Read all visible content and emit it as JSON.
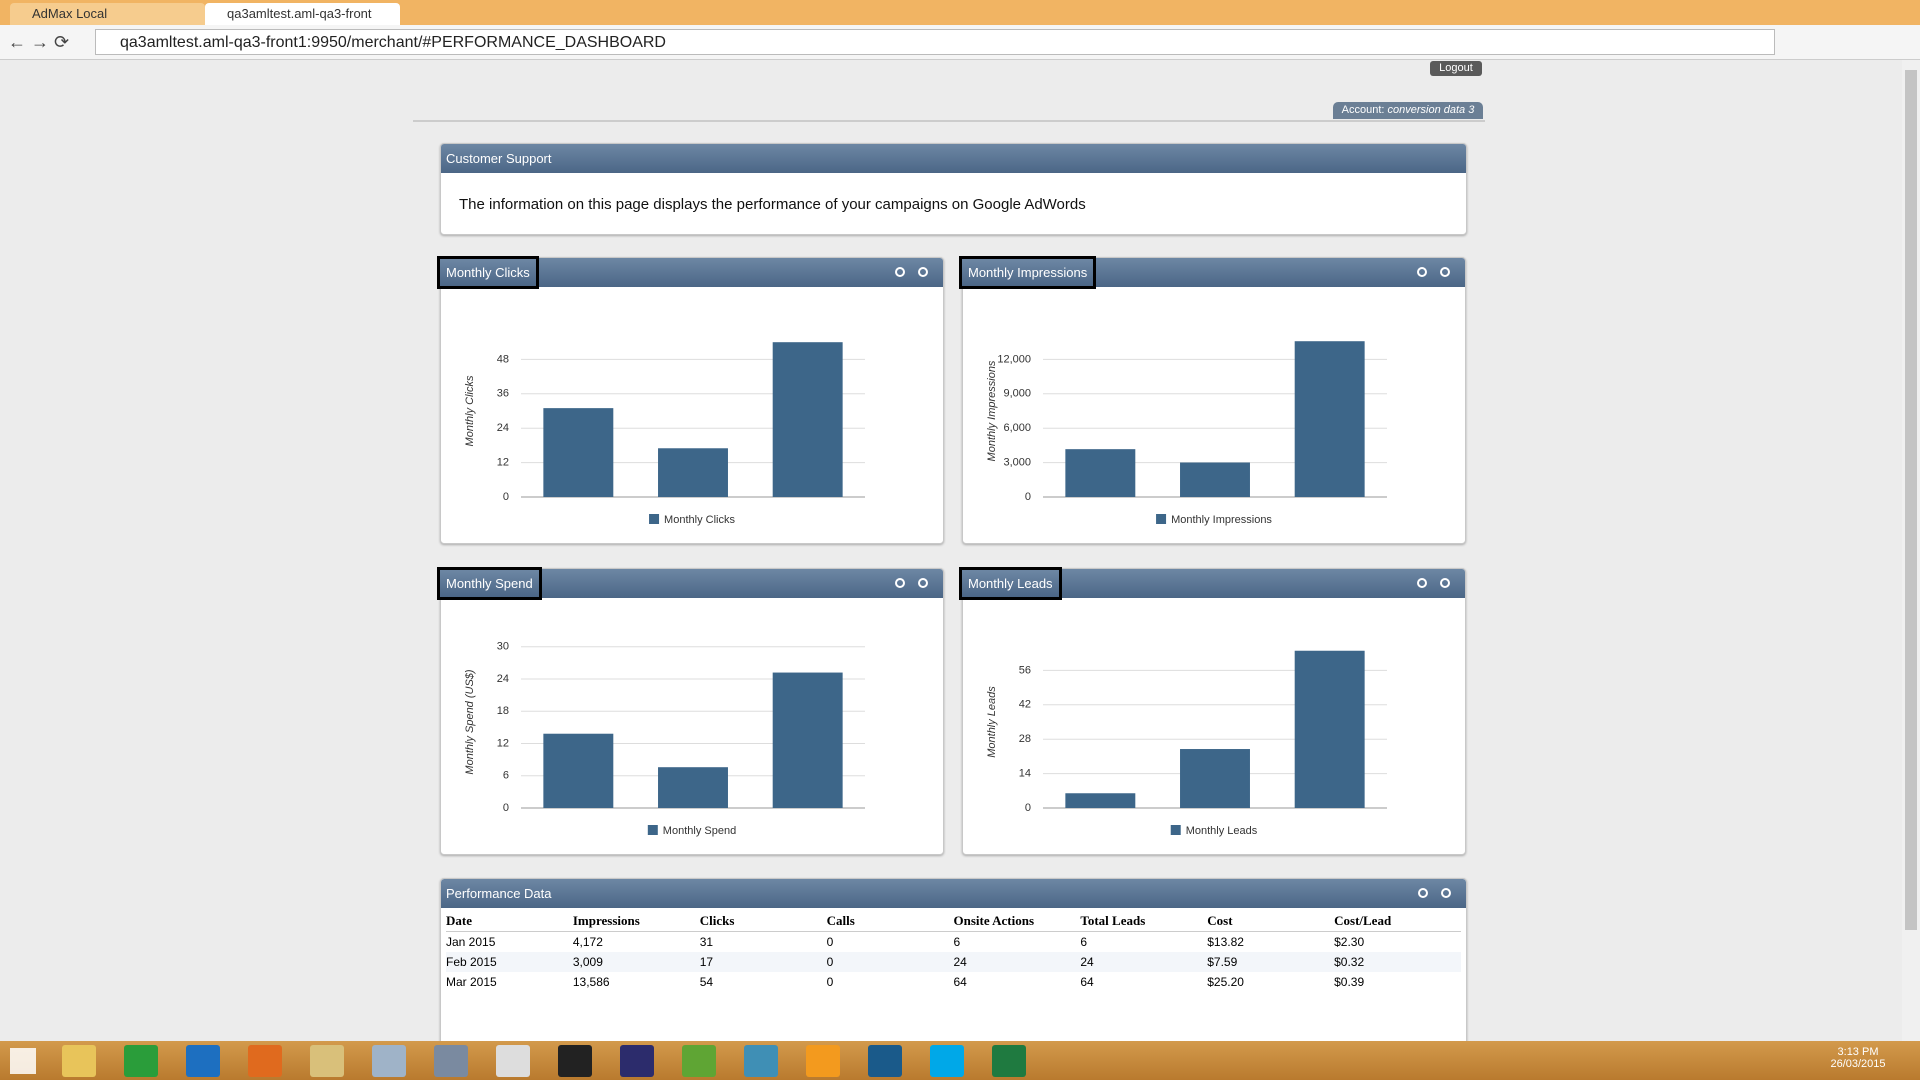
{
  "browser": {
    "tabs": [
      "AdMax Local",
      "qa3amltest.aml-qa3-front"
    ],
    "url": "qa3amltest.aml-qa3-front1:9950/merchant/#PERFORMANCE_DASHBOARD"
  },
  "header": {
    "logout": "Logout",
    "account_label": "Account:",
    "account_name": "conversion data 3"
  },
  "support": {
    "title": "Customer Support",
    "text": "The information on this page displays the performance of your campaigns on Google AdWords"
  },
  "chart_data": [
    {
      "type": "bar",
      "title": "Monthly Clicks",
      "y_label": "Monthly Clicks",
      "categories": [
        null,
        null,
        null
      ],
      "series": [
        {
          "name": "Monthly Clicks",
          "color": "#3d6689",
          "values": [
            31,
            17,
            54
          ]
        }
      ],
      "ylim": [
        0,
        60
      ],
      "yticks": [
        0,
        12,
        24,
        36,
        48
      ],
      "grid": true,
      "legend": "bottom"
    },
    {
      "type": "bar",
      "title": "Monthly Impressions",
      "y_label": "Monthly Impressions",
      "categories": [
        null,
        null,
        null
      ],
      "series": [
        {
          "name": "Monthly Impressions",
          "color": "#3d6689",
          "values": [
            4172,
            3009,
            13586
          ]
        }
      ],
      "ylim": [
        0,
        15000
      ],
      "yticks": [
        0,
        {
          "value": 3000,
          "label": "3,000"
        },
        {
          "value": 6000,
          "label": "6,000"
        },
        {
          "value": 9000,
          "label": "9,000"
        },
        {
          "value": 12000,
          "label": "12,000"
        }
      ],
      "grid": true,
      "legend": "bottom"
    },
    {
      "type": "bar",
      "title": "Monthly Spend",
      "y_label": "Monthly Spend (US$)",
      "categories": [
        null,
        null,
        null
      ],
      "series": [
        {
          "name": "Monthly Spend",
          "color": "#3d6689",
          "values": [
            13.82,
            7.59,
            25.2
          ]
        }
      ],
      "ylim": [
        0,
        32
      ],
      "yticks": [
        0,
        6,
        12,
        18,
        24,
        30
      ],
      "grid": true,
      "legend": "bottom"
    },
    {
      "type": "bar",
      "title": "Monthly Leads",
      "y_label": "Monthly Leads",
      "categories": [
        null,
        null,
        null
      ],
      "series": [
        {
          "name": "Monthly Leads",
          "color": "#3d6689",
          "values": [
            6,
            24,
            64
          ]
        }
      ],
      "ylim": [
        0,
        70
      ],
      "yticks": [
        0,
        14,
        28,
        42,
        56
      ],
      "grid": true,
      "legend": "bottom"
    }
  ],
  "table": {
    "title": "Performance Data",
    "columns": [
      "Date",
      "Impressions",
      "Clicks",
      "Calls",
      "Onsite Actions",
      "Total Leads",
      "Cost",
      "Cost/Lead"
    ],
    "rows": [
      [
        "Jan 2015",
        "4,172",
        "31",
        "0",
        "6",
        "6",
        "$13.82",
        "$2.30"
      ],
      [
        "Feb 2015",
        "3,009",
        "17",
        "0",
        "24",
        "24",
        "$7.59",
        "$0.32"
      ],
      [
        "Mar 2015",
        "13,586",
        "54",
        "0",
        "64",
        "64",
        "$25.20",
        "$0.39"
      ]
    ]
  },
  "taskbar": {
    "time": "3:13 PM",
    "date": "26/03/2015"
  }
}
